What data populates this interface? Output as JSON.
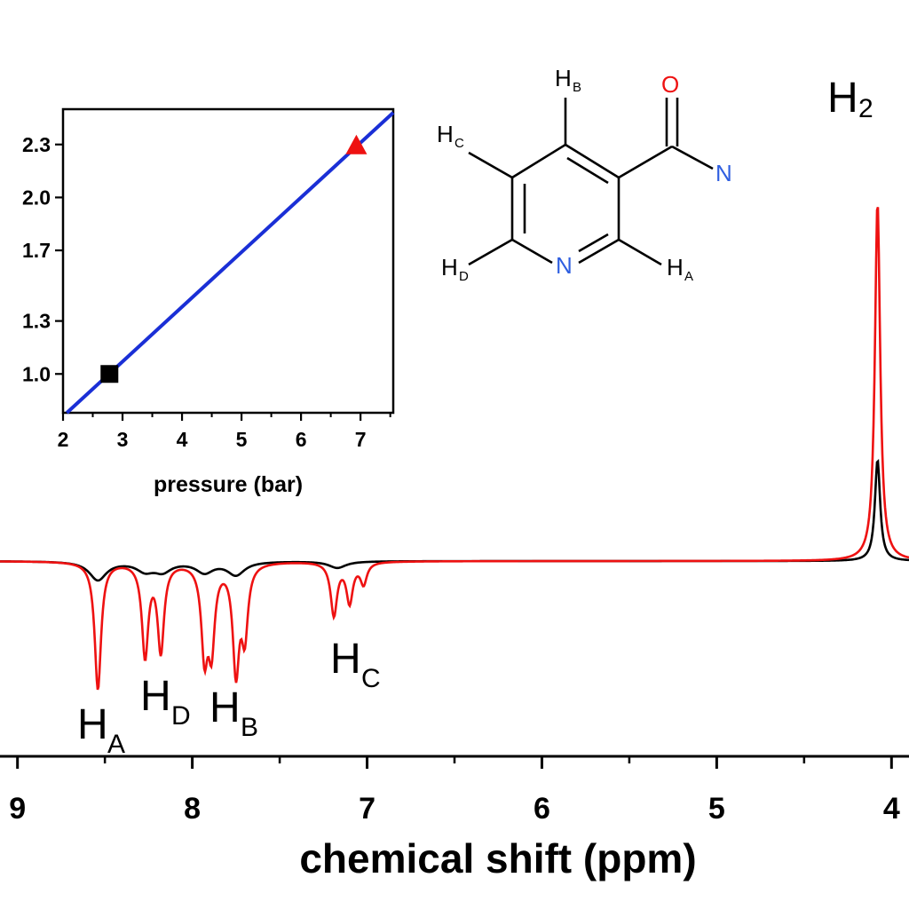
{
  "colors": {
    "series_black": "#000000",
    "series_red": "#ee1111",
    "fit_line": "#1a2fd6",
    "oxygen": "#ee1111",
    "nitrogen": "#2f5fe0"
  },
  "chart_data": [
    {
      "type": "line",
      "xlabel": "chemical shift (ppm)",
      "ylabel": "",
      "x_reversed": true,
      "xlim": [
        9.1,
        3.9
      ],
      "x_ticks": [
        "9",
        "8",
        "7",
        "6",
        "5",
        "4"
      ],
      "y_ticks_shown": false,
      "series": [
        {
          "color": "black",
          "peaks": [
            {
              "x": 8.54,
              "y": -0.07
            },
            {
              "x": 8.27,
              "y": -0.033
            },
            {
              "x": 8.17,
              "y": -0.035
            },
            {
              "x": 7.93,
              "y": -0.04
            },
            {
              "x": 7.75,
              "y": -0.05
            },
            {
              "x": 7.17,
              "y": -0.025
            },
            {
              "x": 4.08,
              "y": 0.38
            }
          ]
        },
        {
          "color": "red",
          "peaks": [
            {
              "x": 8.54,
              "y": -0.48
            },
            {
              "x": 8.27,
              "y": -0.35
            },
            {
              "x": 8.18,
              "y": -0.33
            },
            {
              "x": 7.93,
              "y": -0.33
            },
            {
              "x": 7.89,
              "y": -0.3
            },
            {
              "x": 7.75,
              "y": -0.4
            },
            {
              "x": 7.7,
              "y": -0.26
            },
            {
              "x": 7.19,
              "y": -0.2
            },
            {
              "x": 7.1,
              "y": -0.15
            },
            {
              "x": 7.02,
              "y": -0.08
            },
            {
              "x": 4.08,
              "y": 1.35
            }
          ]
        }
      ]
    },
    {
      "type": "scatter",
      "xlabel": "pressure (bar)",
      "ylabel": "",
      "xlim": [
        2,
        7.55
      ],
      "ylim": [
        0.78,
        2.5
      ],
      "x_ticks": [
        "2",
        "3",
        "4",
        "5",
        "6",
        "7"
      ],
      "y_ticks": [
        "1.0",
        "1.3",
        "1.7",
        "2.0",
        "2.3"
      ],
      "y_tick_values": [
        1.0,
        1.3,
        1.7,
        2.0,
        2.3
      ],
      "points": [
        {
          "x": 2.78,
          "y": 1.0,
          "marker": "square",
          "color": "black"
        },
        {
          "x": 6.93,
          "y": 2.29,
          "marker": "triangle",
          "color": "red"
        }
      ],
      "fit_line": {
        "slope": 0.31,
        "intercept": 0.14,
        "color": "blue"
      }
    }
  ],
  "annotations": {
    "peak_labels": [
      {
        "main": "H",
        "sub": "A"
      },
      {
        "main": "H",
        "sub": "D"
      },
      {
        "main": "H",
        "sub": "B"
      },
      {
        "main": "H",
        "sub": "C"
      },
      {
        "main": "H",
        "sub": "2"
      }
    ],
    "molecule": {
      "atoms": {
        "O": "O",
        "N_amide": "N",
        "N_ring": "N"
      },
      "h_labels": [
        {
          "main": "H",
          "sub": "B"
        },
        {
          "main": "H",
          "sub": "C"
        },
        {
          "main": "H",
          "sub": "D"
        },
        {
          "main": "H",
          "sub": "A"
        }
      ]
    }
  }
}
